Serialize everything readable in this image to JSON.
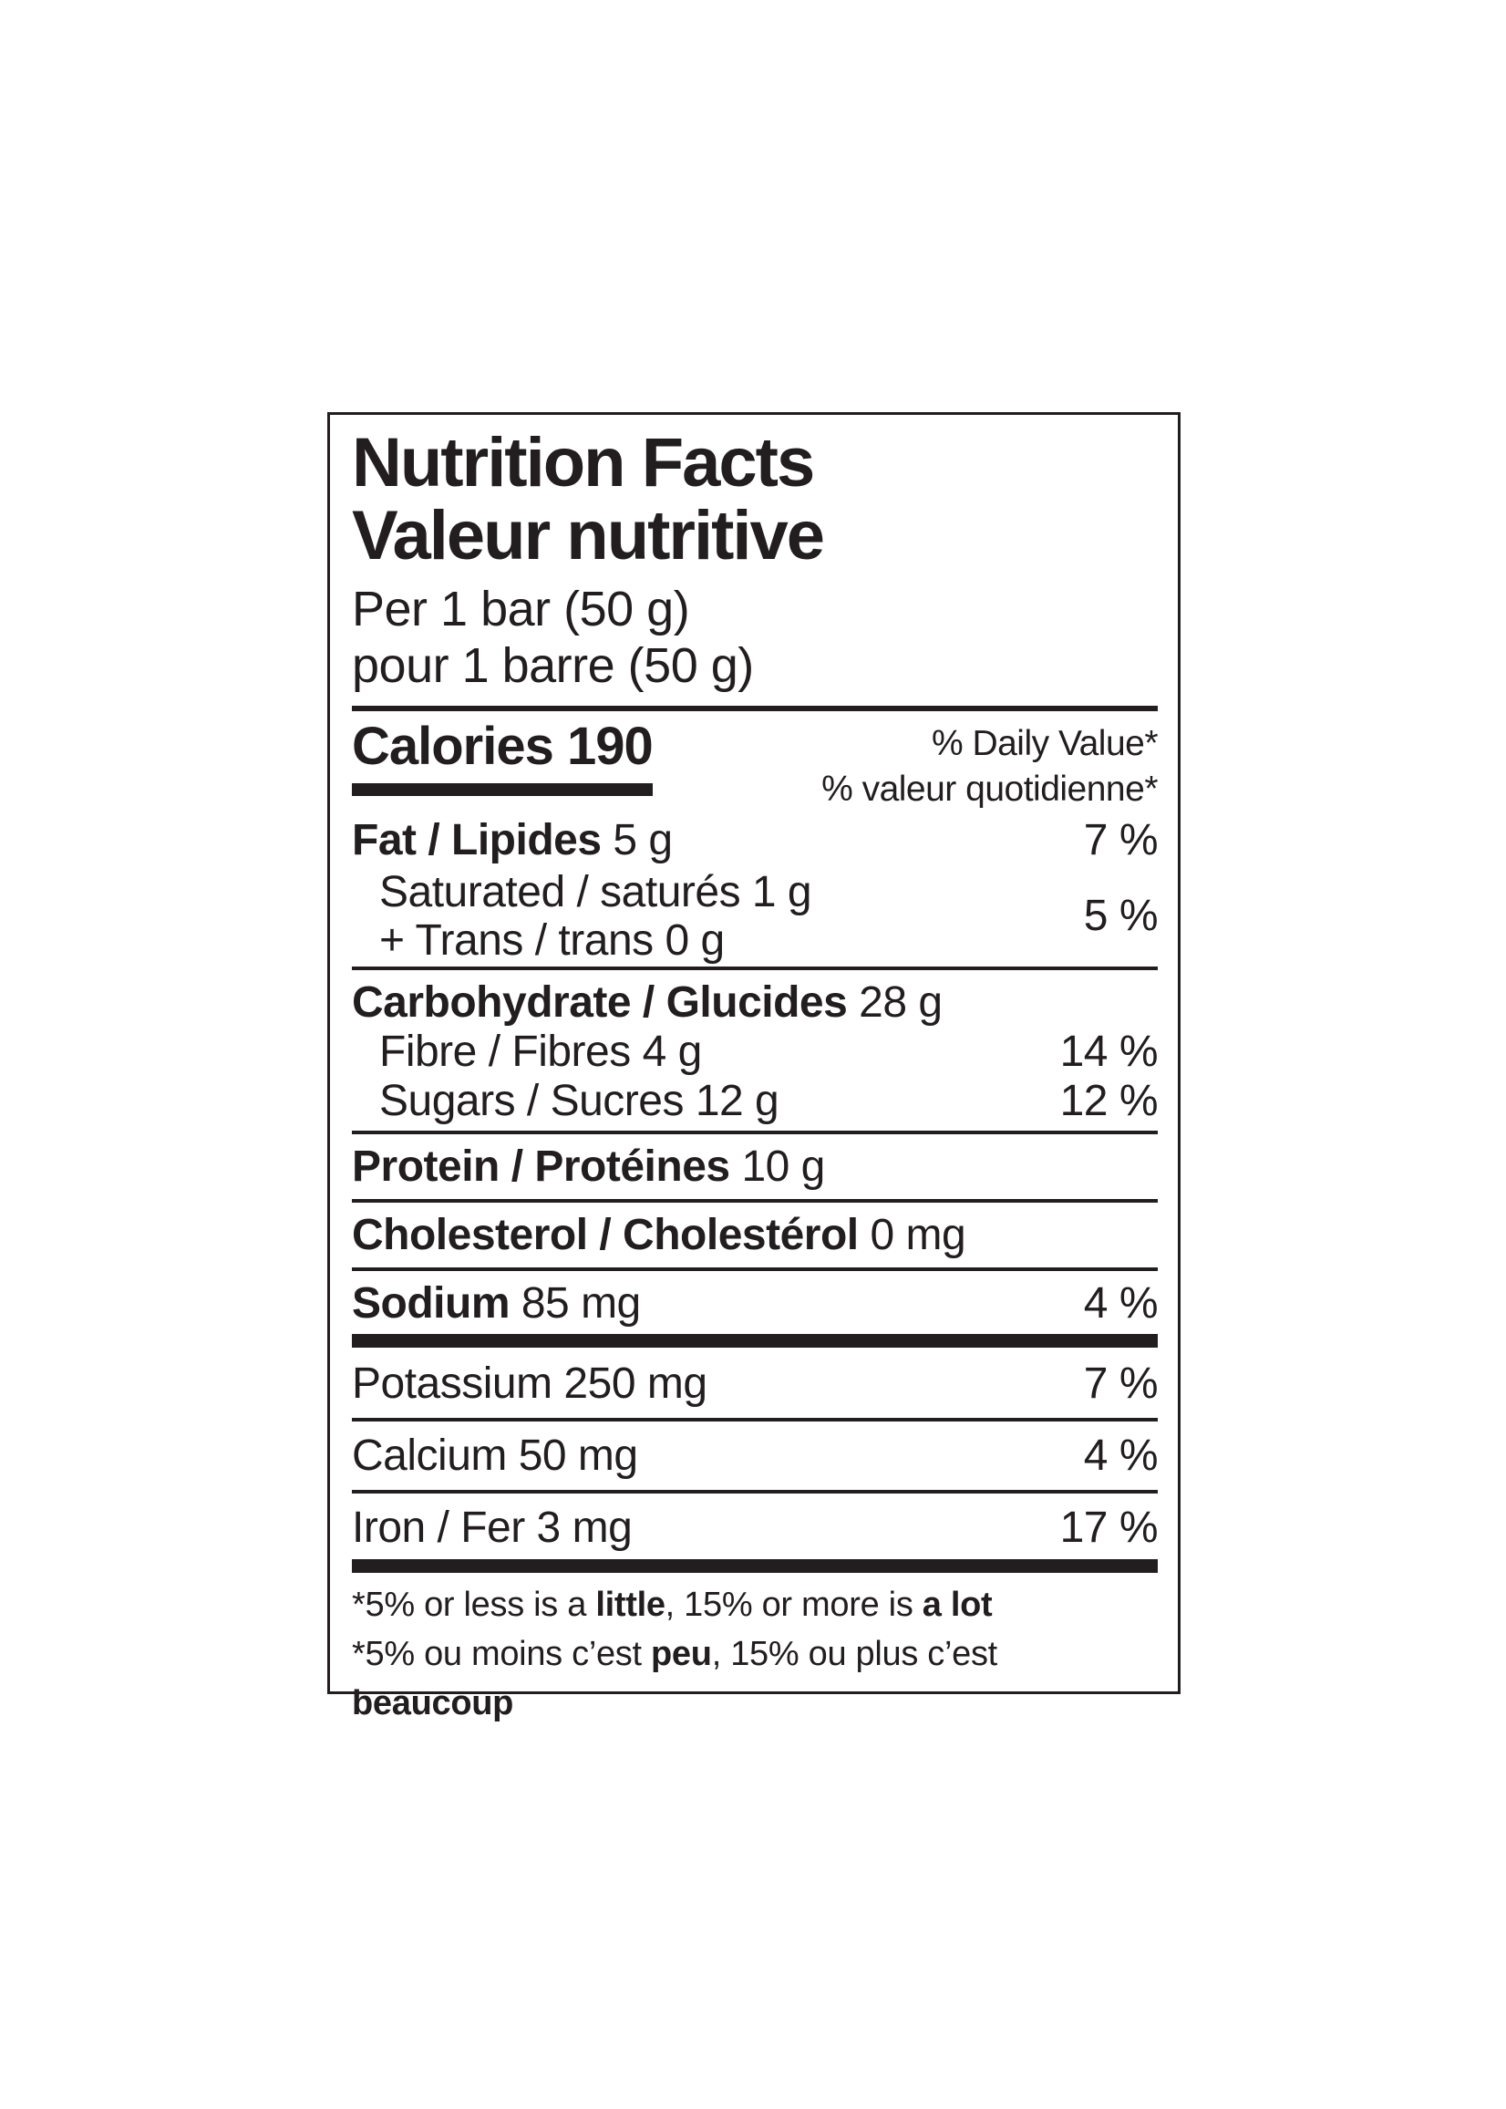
{
  "colors": {
    "ink": "#221e1f",
    "background": "#ffffff"
  },
  "label": {
    "title_en": "Nutrition Facts",
    "title_fr": "Valeur nutritive",
    "serving_en": "Per 1 bar (50 g)",
    "serving_fr": "pour 1 barre (50 g)",
    "calories_word": "Calories",
    "calories_value": "190",
    "daily_value_en": "% Daily Value*",
    "daily_value_fr": "% valeur quotidienne*",
    "rows": {
      "fat": {
        "bold": "Fat / Lipides",
        "rest": "5 g",
        "dv": "7 %"
      },
      "saturated_trans": {
        "line1": "Saturated / saturés 1 g",
        "line2": "+ Trans / trans 0 g",
        "dv": "5 %"
      },
      "carbohydrate": {
        "bold": "Carbohydrate / Glucides",
        "rest": "28 g"
      },
      "fibre": {
        "text": "Fibre / Fibres 4 g",
        "dv": "14 %"
      },
      "sugars": {
        "text": "Sugars / Sucres 12 g",
        "dv": "12 %"
      },
      "protein": {
        "bold": "Protein / Protéines",
        "rest": "10 g"
      },
      "cholesterol": {
        "bold": "Cholesterol / Cholestérol",
        "rest": "0 mg"
      },
      "sodium": {
        "bold": "Sodium",
        "rest": "85 mg",
        "dv": "4 %"
      },
      "potassium": {
        "text": "Potassium 250 mg",
        "dv": "7 %"
      },
      "calcium": {
        "text": "Calcium 50 mg",
        "dv": "4 %"
      },
      "iron": {
        "text": "Iron / Fer 3 mg",
        "dv": "17 %"
      }
    },
    "footnote_en": {
      "pre": "*5% or less is a ",
      "bold1": "little",
      "mid": ", 15% or more is ",
      "bold2": "a lot"
    },
    "footnote_fr": {
      "pre": "*5% ou moins c’est ",
      "bold1": "peu",
      "mid": ", 15% ou plus c’est ",
      "bold2": "beaucoup"
    }
  }
}
